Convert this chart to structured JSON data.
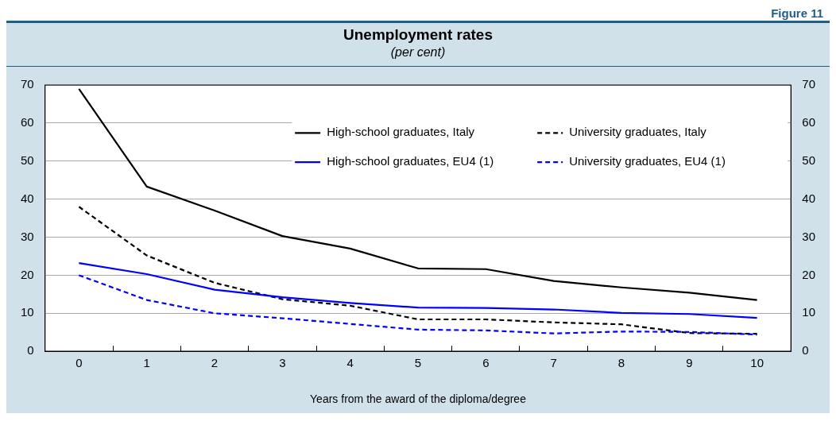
{
  "chart_data": {
    "type": "line",
    "title": "Unemployment rates",
    "subtitle": "(per cent)",
    "xlabel": "Years from the award of the diploma/degree",
    "annotations": [
      "Figure 11"
    ],
    "categories": [
      "0",
      "1",
      "2",
      "3",
      "4",
      "5",
      "6",
      "7",
      "8",
      "9",
      "10"
    ],
    "series": [
      {
        "name": "High-school graduates, Italy",
        "color": "#000000",
        "line_style": "solid",
        "values": [
          69,
          43.3,
          37,
          30.3,
          27,
          21.8,
          21.6,
          18.5,
          16.8,
          15.4,
          13.5
        ]
      },
      {
        "name": "University graduates, Italy",
        "color": "#000000",
        "line_style": "dashed",
        "values": [
          38,
          25.2,
          18,
          13.7,
          12,
          8.4,
          8.4,
          7.6,
          7.1,
          4.8,
          4.6
        ]
      },
      {
        "name": "High-school graduates, EU4 (1)",
        "color": "#0000ff",
        "line_style": "solid",
        "values": [
          23.2,
          20.3,
          16.2,
          14.2,
          12.7,
          11.5,
          11.4,
          11,
          10.1,
          9.8,
          8.8
        ]
      },
      {
        "name": "University graduates, EU4 (1)",
        "color": "#0000ff",
        "line_style": "dashed",
        "values": [
          20,
          13.5,
          10,
          8.7,
          7.2,
          5.7,
          5.5,
          4.7,
          5.2,
          5.1,
          4.4
        ]
      }
    ],
    "ylim": [
      0,
      70
    ],
    "yticks": [
      0,
      10,
      20,
      30,
      40,
      50,
      60,
      70
    ],
    "y2lim": [
      0,
      70
    ],
    "y2ticks": [
      0,
      10,
      20,
      30,
      40,
      50,
      60,
      70
    ],
    "grid": "y",
    "legend": "top right",
    "marker": "none"
  }
}
